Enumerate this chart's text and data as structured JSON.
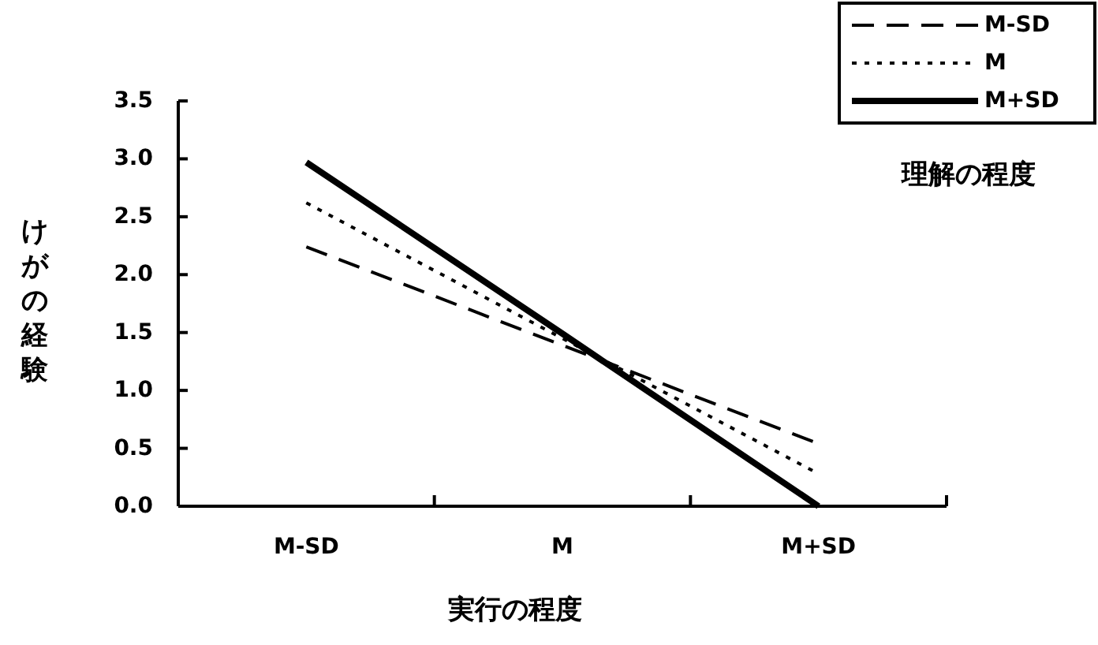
{
  "chart_data": {
    "type": "line",
    "xlabel": "実行の程度",
    "ylabel": "けがの経験",
    "legend_title": "理解の程度",
    "categories": [
      "M-SD",
      "M",
      "M+SD"
    ],
    "ylim": [
      0,
      3.5
    ],
    "yticks": [
      {
        "value": 0,
        "label": "0.0"
      },
      {
        "value": 0.5,
        "label": "0.5"
      },
      {
        "value": 1,
        "label": "1.0"
      },
      {
        "value": 1.5,
        "label": "1.5"
      },
      {
        "value": 2,
        "label": "2.0"
      },
      {
        "value": 2.5,
        "label": "2.5"
      },
      {
        "value": 3,
        "label": "3.0"
      },
      {
        "value": 3.5,
        "label": "3.5"
      }
    ],
    "legend": "top right",
    "grid": false,
    "marker": "none",
    "series": [
      {
        "name": "M-SD",
        "color": "#000000",
        "line_style": "dashed",
        "values": [
          2.24,
          1.39,
          0.54
        ]
      },
      {
        "name": "M",
        "color": "#000000",
        "line_style": "dotted",
        "values": [
          2.62,
          1.45,
          0.28
        ]
      },
      {
        "name": "M+SD",
        "color": "#000000",
        "line_style": "solid",
        "values": [
          2.97,
          1.49,
          0
        ]
      }
    ]
  }
}
